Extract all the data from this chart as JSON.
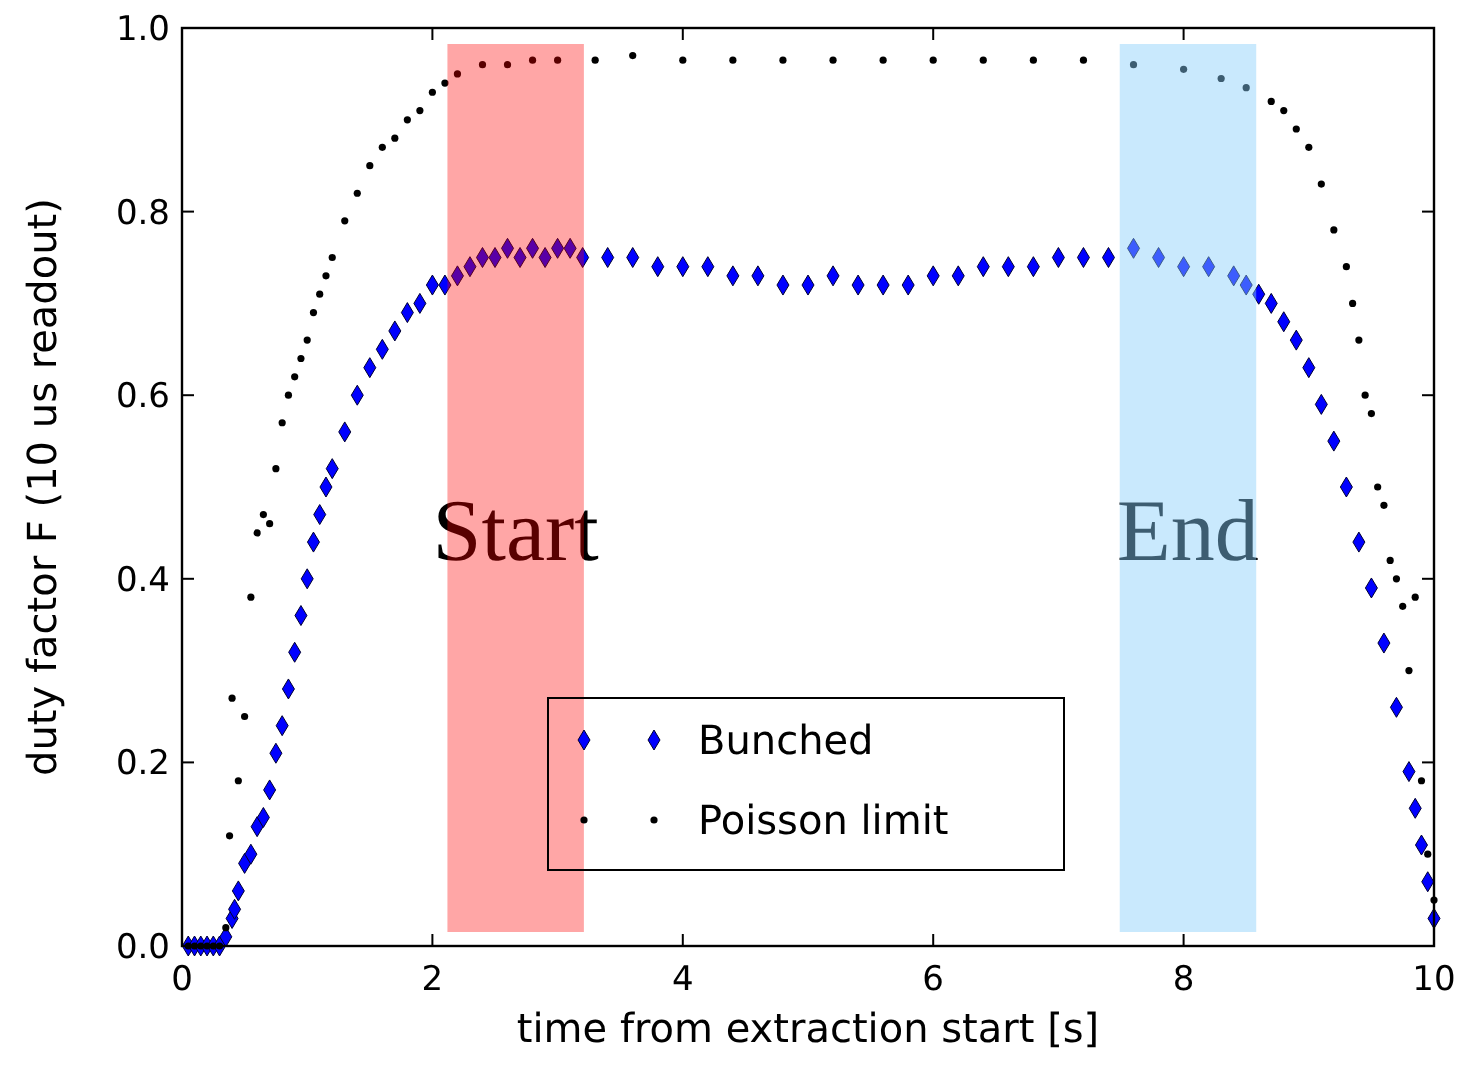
{
  "chart_data": {
    "type": "scatter",
    "xlabel": "time from extraction start [s]",
    "ylabel": "duty factor F (10 us readout)",
    "xlim": [
      0,
      10
    ],
    "ylim": [
      0,
      1
    ],
    "xticks": [
      0,
      2,
      4,
      6,
      8,
      10
    ],
    "yticks": [
      {
        "value": 0,
        "label": "0.0"
      },
      {
        "value": 0.2,
        "label": "0.2"
      },
      {
        "value": 0.4,
        "label": "0.4"
      },
      {
        "value": 0.6,
        "label": "0.6"
      },
      {
        "value": 0.8,
        "label": "0.8"
      },
      {
        "value": 1,
        "label": "1.0"
      }
    ],
    "grid": false,
    "legend": "bottom",
    "bands": [
      {
        "axis": "x",
        "from": 2.12,
        "to": 3.21,
        "label": "Start",
        "color": "#ff0000"
      },
      {
        "axis": "x",
        "from": 7.49,
        "to": 8.58,
        "label": "End",
        "color": "#87cefa"
      }
    ],
    "series": [
      {
        "name": "Bunched",
        "color": "#0000ff",
        "marker": "diamond",
        "x": [
          0.05,
          0.1,
          0.15,
          0.2,
          0.25,
          0.3,
          0.35,
          0.4,
          0.42,
          0.45,
          0.5,
          0.55,
          0.6,
          0.65,
          0.7,
          0.75,
          0.8,
          0.85,
          0.9,
          0.95,
          1.0,
          1.05,
          1.1,
          1.15,
          1.2,
          1.3,
          1.4,
          1.5,
          1.6,
          1.7,
          1.8,
          1.9,
          2.0,
          2.1,
          2.2,
          2.3,
          2.4,
          2.5,
          2.6,
          2.7,
          2.8,
          2.9,
          3.0,
          3.1,
          3.2,
          3.4,
          3.6,
          3.8,
          4.0,
          4.2,
          4.4,
          4.6,
          4.8,
          5.0,
          5.2,
          5.4,
          5.6,
          5.8,
          6.0,
          6.2,
          6.4,
          6.6,
          6.8,
          7.0,
          7.2,
          7.4,
          7.6,
          7.8,
          8.0,
          8.2,
          8.4,
          8.5,
          8.6,
          8.7,
          8.8,
          8.9,
          9.0,
          9.1,
          9.2,
          9.3,
          9.4,
          9.5,
          9.6,
          9.7,
          9.8,
          9.85,
          9.9,
          9.95,
          10.0
        ],
        "values": [
          0.0,
          0.0,
          0.0,
          0.0,
          0.0,
          0.0,
          0.01,
          0.03,
          0.04,
          0.06,
          0.09,
          0.1,
          0.13,
          0.14,
          0.17,
          0.21,
          0.24,
          0.28,
          0.32,
          0.36,
          0.4,
          0.44,
          0.47,
          0.5,
          0.52,
          0.56,
          0.6,
          0.63,
          0.65,
          0.67,
          0.69,
          0.7,
          0.72,
          0.72,
          0.73,
          0.74,
          0.75,
          0.75,
          0.76,
          0.75,
          0.76,
          0.75,
          0.76,
          0.76,
          0.75,
          0.75,
          0.75,
          0.74,
          0.74,
          0.74,
          0.73,
          0.73,
          0.72,
          0.72,
          0.73,
          0.72,
          0.72,
          0.72,
          0.73,
          0.73,
          0.74,
          0.74,
          0.74,
          0.75,
          0.75,
          0.75,
          0.76,
          0.75,
          0.74,
          0.74,
          0.73,
          0.72,
          0.71,
          0.7,
          0.68,
          0.66,
          0.63,
          0.59,
          0.55,
          0.5,
          0.44,
          0.39,
          0.33,
          0.26,
          0.19,
          0.15,
          0.11,
          0.07,
          0.03
        ]
      },
      {
        "name": "Poisson limit",
        "color": "#000000",
        "marker": "circle",
        "x": [
          0.05,
          0.1,
          0.15,
          0.2,
          0.25,
          0.3,
          0.35,
          0.38,
          0.4,
          0.45,
          0.5,
          0.55,
          0.6,
          0.65,
          0.7,
          0.75,
          0.8,
          0.85,
          0.9,
          0.95,
          1.0,
          1.05,
          1.1,
          1.15,
          1.2,
          1.3,
          1.4,
          1.5,
          1.6,
          1.7,
          1.8,
          1.9,
          2.0,
          2.1,
          2.2,
          2.4,
          2.6,
          2.8,
          3.0,
          3.3,
          3.6,
          4.0,
          4.4,
          4.8,
          5.2,
          5.6,
          6.0,
          6.4,
          6.8,
          7.2,
          7.6,
          8.0,
          8.3,
          8.5,
          8.7,
          8.8,
          8.9,
          9.0,
          9.1,
          9.2,
          9.3,
          9.35,
          9.4,
          9.45,
          9.5,
          9.55,
          9.6,
          9.65,
          9.7,
          9.75,
          9.8,
          9.85,
          9.9,
          9.95,
          10.0
        ],
        "values": [
          0.0,
          0.0,
          0.0,
          0.0,
          0.0,
          0.0,
          0.02,
          0.12,
          0.27,
          0.18,
          0.25,
          0.38,
          0.45,
          0.47,
          0.46,
          0.52,
          0.57,
          0.6,
          0.62,
          0.64,
          0.66,
          0.69,
          0.71,
          0.73,
          0.75,
          0.79,
          0.82,
          0.85,
          0.87,
          0.88,
          0.9,
          0.91,
          0.93,
          0.94,
          0.95,
          0.96,
          0.96,
          0.965,
          0.965,
          0.965,
          0.97,
          0.965,
          0.965,
          0.965,
          0.965,
          0.965,
          0.965,
          0.965,
          0.965,
          0.965,
          0.96,
          0.955,
          0.945,
          0.935,
          0.92,
          0.91,
          0.89,
          0.87,
          0.83,
          0.78,
          0.74,
          0.7,
          0.66,
          0.6,
          0.58,
          0.5,
          0.48,
          0.42,
          0.4,
          0.37,
          0.3,
          0.38,
          0.18,
          0.1,
          0.05
        ]
      }
    ]
  }
}
